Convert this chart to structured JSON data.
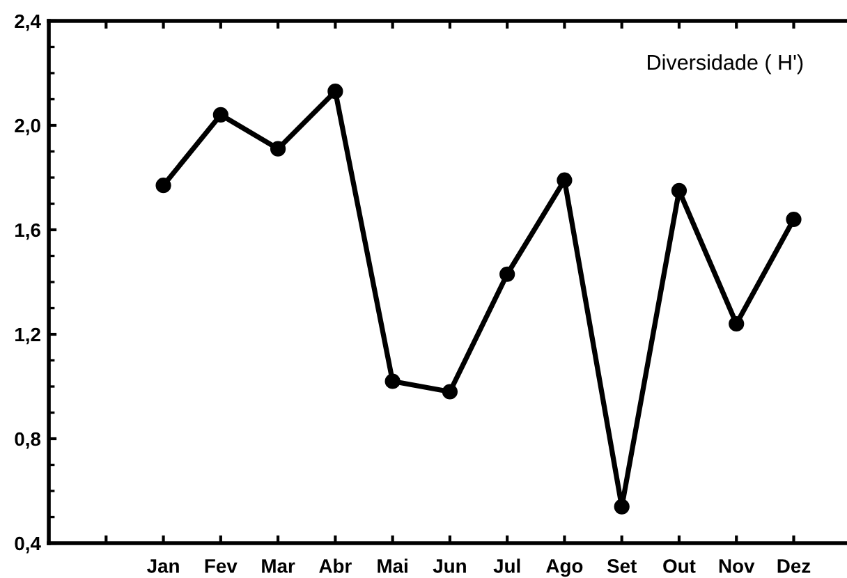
{
  "chart_data": {
    "type": "line",
    "categories": [
      null,
      "Jan",
      "Fev",
      "Mar",
      "Abr",
      "Mai",
      "Jun",
      "Jul",
      "Ago",
      "Set",
      "Out",
      "Nov",
      "Dez"
    ],
    "series": [
      {
        "color": "#000000",
        "values": [
          null,
          1.77,
          2.04,
          1.91,
          2.13,
          1.02,
          0.98,
          1.43,
          1.79,
          0.54,
          1.75,
          1.24,
          1.64
        ]
      }
    ],
    "ylim": [
      0.4,
      2.4
    ],
    "yticks": [
      {
        "value": 0.4,
        "label": "0,4"
      },
      {
        "value": 0.5,
        "label": null
      },
      {
        "value": 0.6,
        "label": null
      },
      {
        "value": 0.7,
        "label": null
      },
      {
        "value": 0.8,
        "label": "0,8"
      },
      {
        "value": 0.9,
        "label": null
      },
      {
        "value": 1.0,
        "label": null
      },
      {
        "value": 1.1,
        "label": null
      },
      {
        "value": 1.2,
        "label": "1,2"
      },
      {
        "value": 1.3,
        "label": null
      },
      {
        "value": 1.4,
        "label": null
      },
      {
        "value": 1.5,
        "label": null
      },
      {
        "value": 1.6,
        "label": "1,6"
      },
      {
        "value": 1.7,
        "label": null
      },
      {
        "value": 1.8,
        "label": null
      },
      {
        "value": 1.9,
        "label": null
      },
      {
        "value": 2.0,
        "label": "2,0"
      },
      {
        "value": 2.1,
        "label": null
      },
      {
        "value": 2.2,
        "label": null
      },
      {
        "value": 2.3,
        "label": null
      },
      {
        "value": 2.4,
        "label": "2,4"
      }
    ],
    "marker": "circle",
    "line_style": "solid",
    "annotations": [
      "Diversidade ( H')"
    ]
  }
}
